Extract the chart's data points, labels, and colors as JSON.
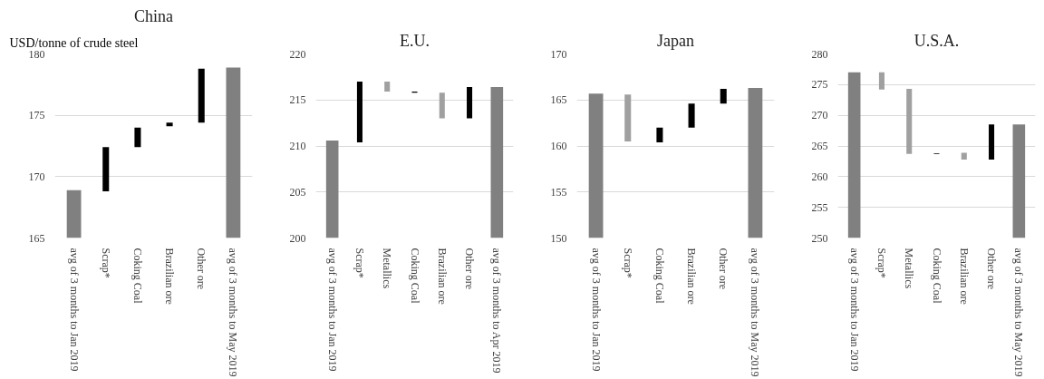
{
  "chart_data": [
    {
      "type": "bar",
      "title": "China",
      "ylabel": "USD/tonne of crude steel",
      "categories": [
        "avg of 3 months to Jan 2019",
        "Scrap*",
        "Coking Coal",
        "Brazilian ore",
        "Other ore",
        "avg of 3 months to May 2019"
      ],
      "values": [
        168.9,
        3.6,
        1.6,
        0.3,
        4.4,
        178.9
      ],
      "base": [
        null,
        168.8,
        172.4,
        174.1,
        174.4,
        null
      ],
      "colors": [
        "#808080",
        "#000000",
        "#000000",
        "#000000",
        "#000000",
        "#808080"
      ],
      "ylim": [
        165,
        180
      ],
      "yticks": [
        165,
        170,
        175,
        180
      ],
      "grid": "y"
    },
    {
      "type": "bar",
      "title": "E.U.",
      "categories": [
        "avg of 3 months to Jan 2019",
        "Scrap*",
        "Metallics",
        "Coking Coal",
        "Brazilian ore",
        "Other ore",
        "avg of 3 months to Apr 2019"
      ],
      "values": [
        210.6,
        6.6,
        -1.1,
        -0.1,
        -2.8,
        3.4,
        216.4
      ],
      "base": [
        null,
        210.4,
        217.0,
        215.9,
        215.8,
        213.0,
        null
      ],
      "colors": [
        "#808080",
        "#000000",
        "#a0a0a0",
        "#000000",
        "#a0a0a0",
        "#000000",
        "#808080"
      ],
      "ylim": [
        200,
        220
      ],
      "yticks": [
        200,
        205,
        210,
        215,
        220
      ],
      "grid": "y"
    },
    {
      "type": "bar",
      "title": "Japan",
      "categories": [
        "avg of 3 months to Jan 2019",
        "Scrap*",
        "Coking Coal",
        "Brazilian ore",
        "Other ore",
        "avg of 3 months to May 2019"
      ],
      "values": [
        165.7,
        -5.1,
        1.6,
        2.6,
        1.6,
        166.3
      ],
      "base": [
        null,
        165.6,
        160.4,
        162.0,
        164.6,
        null
      ],
      "colors": [
        "#808080",
        "#a0a0a0",
        "#000000",
        "#000000",
        "#000000",
        "#808080"
      ],
      "ylim": [
        150,
        170
      ],
      "yticks": [
        150,
        155,
        160,
        165,
        170
      ],
      "grid": "y"
    },
    {
      "type": "bar",
      "title": "U.S.A.",
      "categories": [
        "avg of 3 months to Jan 2019",
        "Scrap*",
        "Metallics",
        "Coking Coal",
        "Brazilian ore",
        "Other ore",
        "avg of 3 months to May 2019"
      ],
      "values": [
        277.0,
        -2.8,
        -10.6,
        0.1,
        -1.1,
        5.7,
        268.5
      ],
      "base": [
        null,
        277.0,
        274.3,
        263.7,
        263.9,
        262.8,
        null
      ],
      "colors": [
        "#808080",
        "#a0a0a0",
        "#a0a0a0",
        "#000000",
        "#a0a0a0",
        "#000000",
        "#808080"
      ],
      "ylim": [
        250,
        280
      ],
      "yticks": [
        250,
        255,
        260,
        265,
        270,
        275,
        280
      ],
      "grid": "y"
    }
  ]
}
